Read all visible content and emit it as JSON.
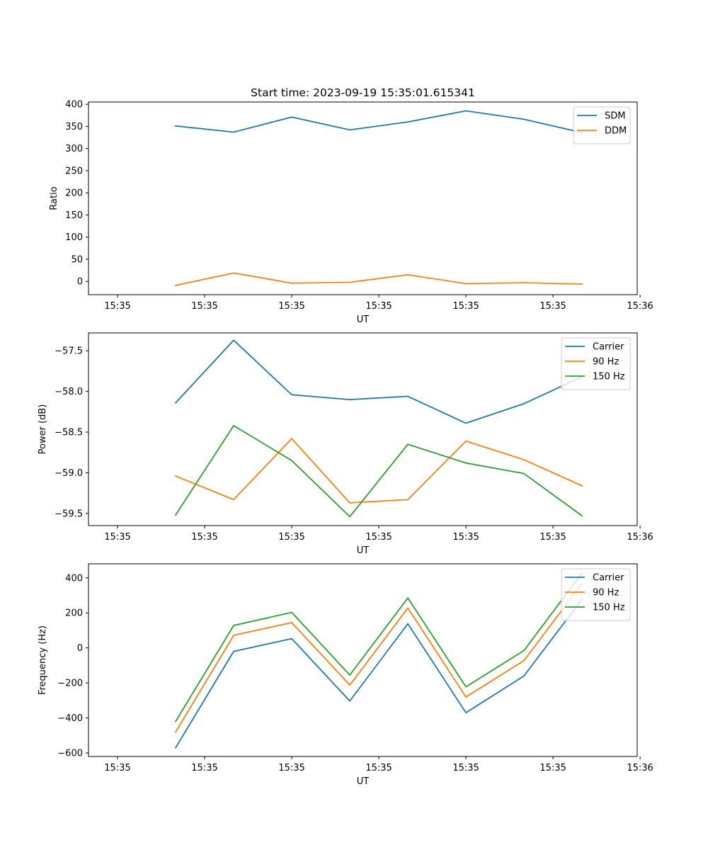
{
  "chart_data": [
    {
      "type": "line",
      "title": "Start time: 2023-09-19 15:35:01.615341",
      "xlabel": "UT",
      "ylabel": "Ratio",
      "xlim": [
        -0.5,
        8.95
      ],
      "x": [
        1,
        2,
        3,
        4,
        5,
        6,
        7,
        8
      ],
      "xticks": [
        0,
        1.5,
        3,
        4.5,
        6,
        7.5,
        9
      ],
      "xtick_labels": [
        "15:35",
        "15:35",
        "15:35",
        "15:35",
        "15:35",
        "15:35",
        "15:36"
      ],
      "ylim": [
        -30,
        405
      ],
      "yticks": [
        0,
        50,
        100,
        150,
        200,
        250,
        300,
        350,
        400
      ],
      "ytick_labels": [
        "0",
        "50",
        "100",
        "150",
        "200",
        "250",
        "300",
        "350",
        "400"
      ],
      "legend": "top-right",
      "series": [
        {
          "name": "SDM",
          "color": "#1f77b4",
          "values": [
            351,
            337,
            371,
            342,
            360,
            385,
            366,
            336
          ]
        },
        {
          "name": "DDM",
          "color": "#ff7f0e",
          "values": [
            -9,
            19,
            -4,
            -2,
            15,
            -5,
            -3,
            -6
          ]
        }
      ]
    },
    {
      "type": "line",
      "title": "",
      "xlabel": "UT",
      "ylabel": "Power (dB)",
      "xlim": [
        -0.5,
        8.95
      ],
      "x": [
        1,
        2,
        3,
        4,
        5,
        6,
        7,
        8
      ],
      "xticks": [
        0,
        1.5,
        3,
        4.5,
        6,
        7.5,
        9
      ],
      "xtick_labels": [
        "15:35",
        "15:35",
        "15:35",
        "15:35",
        "15:35",
        "15:35",
        "15:36"
      ],
      "ylim": [
        -59.65,
        -57.28
      ],
      "yticks": [
        -59.5,
        -59.0,
        -58.5,
        -58.0,
        -57.5
      ],
      "ytick_labels": [
        "−59.5",
        "−59.0",
        "−58.5",
        "−58.0",
        "−57.5"
      ],
      "legend": "top-right",
      "series": [
        {
          "name": "Carrier",
          "color": "#1f77b4",
          "values": [
            -58.14,
            -57.37,
            -58.04,
            -58.1,
            -58.06,
            -58.39,
            -58.15,
            -57.82
          ]
        },
        {
          "name": "90 Hz",
          "color": "#ff7f0e",
          "values": [
            -59.04,
            -59.33,
            -58.58,
            -59.37,
            -59.33,
            -58.61,
            -58.84,
            -59.16
          ]
        },
        {
          "name": "150 Hz",
          "color": "#2ca02c",
          "values": [
            -59.52,
            -58.42,
            -58.85,
            -59.54,
            -58.65,
            -58.88,
            -59.01,
            -59.53
          ]
        }
      ]
    },
    {
      "type": "line",
      "title": "",
      "xlabel": "UT",
      "ylabel": "Frequency (Hz)",
      "xlim": [
        -0.5,
        8.95
      ],
      "x": [
        1,
        2,
        3,
        4,
        5,
        6,
        7,
        8
      ],
      "xticks": [
        0,
        1.5,
        3,
        4.5,
        6,
        7.5,
        9
      ],
      "xtick_labels": [
        "15:35",
        "15:35",
        "15:35",
        "15:35",
        "15:35",
        "15:35",
        "15:36"
      ],
      "ylim": [
        -620,
        480
      ],
      "yticks": [
        -600,
        -400,
        -200,
        0,
        200,
        400
      ],
      "ytick_labels": [
        "−600",
        "−400",
        "−200",
        "0",
        "200",
        "400"
      ],
      "legend": "top-right",
      "series": [
        {
          "name": "Carrier",
          "color": "#1f77b4",
          "values": [
            -570,
            -20,
            53,
            -303,
            138,
            -370,
            -160,
            278
          ]
        },
        {
          "name": "90 Hz",
          "color": "#ff7f0e",
          "values": [
            -480,
            72,
            145,
            -212,
            228,
            -280,
            -72,
            368
          ]
        },
        {
          "name": "150 Hz",
          "color": "#2ca02c",
          "values": [
            -420,
            128,
            203,
            -155,
            285,
            -222,
            -15,
            428
          ]
        }
      ]
    }
  ]
}
